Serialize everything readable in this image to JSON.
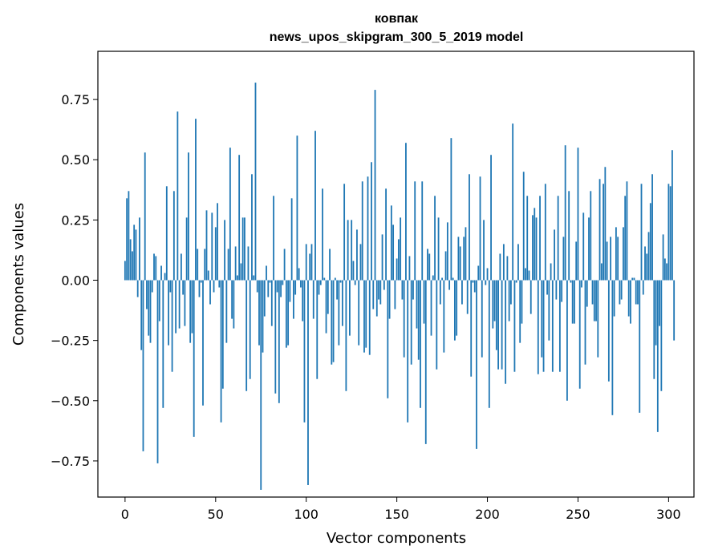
{
  "chart_data": {
    "type": "bar",
    "title_line1": "ковпак",
    "title_line2": "news_upos_skipgram_300_5_2019 model",
    "xlabel": "Vector components",
    "ylabel": "Components values",
    "xlim": [
      -15,
      314
    ],
    "ylim": [
      -0.9,
      0.95
    ],
    "xticks": [
      0,
      50,
      100,
      150,
      200,
      250,
      300
    ],
    "xtick_labels": [
      "0",
      "50",
      "100",
      "150",
      "200",
      "250",
      "300"
    ],
    "yticks": [
      -0.75,
      -0.5,
      -0.25,
      0.0,
      0.25,
      0.5,
      0.75
    ],
    "ytick_labels": [
      "−0.75",
      "−0.50",
      "−0.25",
      "0.00",
      "0.25",
      "0.50",
      "0.75"
    ],
    "bar_color": "#1f77b4",
    "values": [
      0.08,
      0.34,
      0.37,
      0.17,
      0.12,
      0.23,
      0.21,
      -0.07,
      0.26,
      -0.29,
      -0.71,
      0.53,
      -0.12,
      -0.23,
      -0.26,
      -0.05,
      0.11,
      0.1,
      -0.76,
      -0.17,
      0.06,
      -0.53,
      0.03,
      0.39,
      -0.27,
      -0.05,
      -0.38,
      0.37,
      -0.22,
      0.7,
      -0.2,
      0.11,
      -0.06,
      -0.19,
      0.26,
      0.53,
      -0.26,
      -0.22,
      -0.65,
      0.67,
      0.13,
      -0.07,
      -0.01,
      -0.52,
      0.13,
      0.29,
      0.04,
      -0.1,
      0.28,
      -0.05,
      0.22,
      0.32,
      -0.03,
      -0.59,
      -0.45,
      0.25,
      -0.26,
      0.13,
      0.55,
      -0.16,
      -0.2,
      0.14,
      0.02,
      0.52,
      0.07,
      0.26,
      0.26,
      -0.46,
      0.14,
      -0.41,
      0.44,
      0.02,
      0.82,
      -0.05,
      -0.27,
      -0.87,
      -0.3,
      -0.15,
      0.06,
      -0.07,
      -0.01,
      -0.19,
      0.35,
      -0.47,
      -0.05,
      -0.51,
      -0.07,
      -0.02,
      0.13,
      -0.28,
      -0.27,
      -0.09,
      0.34,
      -0.16,
      -0.06,
      0.6,
      0.05,
      -0.03,
      -0.17,
      -0.59,
      0.15,
      -0.85,
      0.11,
      0.15,
      -0.16,
      0.62,
      -0.41,
      -0.06,
      -0.02,
      0.38,
      0.01,
      -0.22,
      -0.14,
      0.13,
      -0.35,
      -0.34,
      0.01,
      -0.08,
      -0.27,
      -0.01,
      -0.19,
      0.4,
      -0.46,
      0.25,
      -0.23,
      0.25,
      0.08,
      -0.02,
      0.21,
      -0.27,
      0.15,
      0.41,
      -0.3,
      -0.28,
      0.43,
      -0.31,
      0.49,
      -0.12,
      0.79,
      -0.15,
      -0.08,
      -0.1,
      0.19,
      -0.04,
      0.38,
      -0.49,
      -0.16,
      0.31,
      0.23,
      -0.12,
      0.09,
      0.17,
      0.26,
      -0.08,
      -0.32,
      0.57,
      -0.59,
      0.1,
      -0.35,
      -0.08,
      0.41,
      -0.2,
      -0.33,
      -0.53,
      0.41,
      -0.18,
      -0.68,
      0.13,
      0.11,
      -0.23,
      0.02,
      0.35,
      -0.37,
      0.26,
      -0.1,
      0.01,
      -0.3,
      0.12,
      0.24,
      -0.04,
      0.59,
      0.01,
      -0.25,
      -0.23,
      0.18,
      0.14,
      -0.1,
      0.18,
      0.22,
      -0.14,
      0.44,
      -0.4,
      -0.01,
      -0.05,
      -0.7,
      0.06,
      0.43,
      -0.32,
      0.25,
      -0.02,
      0.05,
      -0.53,
      0.52,
      -0.2,
      -0.17,
      -0.29,
      -0.37,
      0.11,
      -0.37,
      0.15,
      -0.43,
      0.1,
      -0.17,
      -0.1,
      0.65,
      -0.38,
      -0.01,
      0.15,
      -0.26,
      -0.18,
      0.45,
      0.05,
      0.35,
      0.04,
      -0.14,
      0.27,
      0.3,
      0.26,
      -0.39,
      0.35,
      -0.32,
      -0.38,
      0.4,
      -0.06,
      -0.25,
      0.07,
      -0.38,
      0.21,
      -0.08,
      0.35,
      -0.38,
      -0.09,
      0.18,
      0.56,
      -0.5,
      0.37,
      -0.01,
      -0.18,
      -0.18,
      0.16,
      0.55,
      -0.45,
      -0.03,
      0.28,
      -0.35,
      -0.11,
      0.26,
      0.37,
      -0.1,
      -0.17,
      -0.17,
      -0.32,
      0.42,
      0.07,
      0.4,
      0.47,
      0.16,
      -0.42,
      0.18,
      -0.56,
      -0.15,
      0.22,
      0.18,
      -0.1,
      -0.08,
      0.22,
      0.35,
      0.41,
      -0.15,
      -0.18,
      0.01,
      0.01,
      -0.1,
      -0.1,
      -0.55,
      0.4,
      -0.06,
      0.14,
      0.11,
      0.2,
      0.32,
      0.44,
      -0.41,
      -0.27,
      -0.63,
      -0.19,
      -0.46,
      0.19,
      0.09,
      0.07,
      0.4,
      0.39,
      0.54,
      -0.25
    ]
  }
}
